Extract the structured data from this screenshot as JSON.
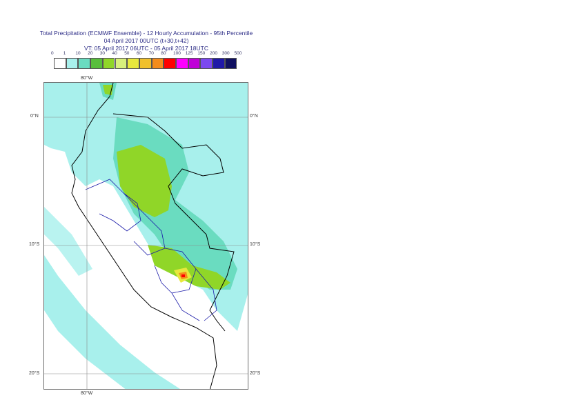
{
  "title": {
    "line1": "Total Precipitation (ECMWF Ensemble) - 12 Hourly Accumulation - 95th Percentile",
    "line2": "04 April 2017 00UTC (t+30,t+42)",
    "line3": "VT: 05 April 2017 06UTC - 05 April 2017 18UTC"
  },
  "legend": {
    "levels": [
      "0",
      "1",
      "10",
      "20",
      "30",
      "40",
      "50",
      "60",
      "70",
      "80",
      "100",
      "125",
      "150",
      "200",
      "300",
      "500"
    ],
    "colors": [
      "#ffffff",
      "#a8f0ec",
      "#6adcc0",
      "#58be3c",
      "#90d628",
      "#d8f07c",
      "#e8e83c",
      "#f0c02c",
      "#f48c1c",
      "#ff0000",
      "#ff00ff",
      "#c000d8",
      "#7c48f0",
      "#2018a8",
      "#101060"
    ]
  },
  "map": {
    "lat_labels": [
      "0°N",
      "10°S",
      "20°S"
    ],
    "lon_label": "80°W"
  }
}
